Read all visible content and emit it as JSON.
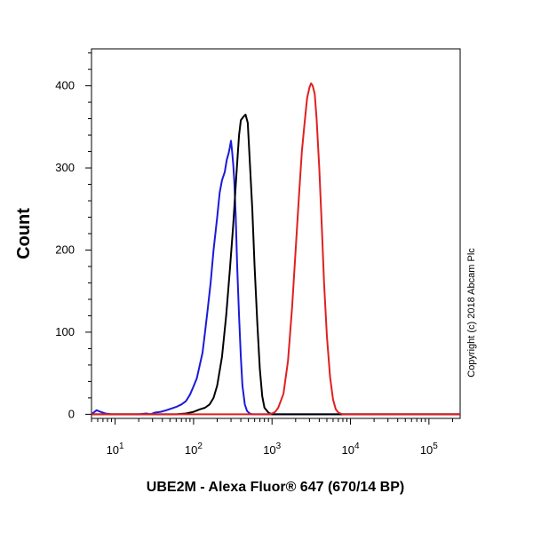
{
  "chart_data": {
    "type": "line",
    "title": "",
    "xlabel": "UBE2M - Alexa Fluor® 647 (670/14 BP)",
    "ylabel": "Count",
    "x_scale": "log",
    "xlim": [
      5,
      250000
    ],
    "ylim": [
      -5,
      445
    ],
    "x_ticks": [
      {
        "base": "10",
        "exp": "1",
        "value": 10
      },
      {
        "base": "10",
        "exp": "2",
        "value": 100
      },
      {
        "base": "10",
        "exp": "3",
        "value": 1000
      },
      {
        "base": "10",
        "exp": "4",
        "value": 10000
      },
      {
        "base": "10",
        "exp": "5",
        "value": 100000
      }
    ],
    "y_ticks": [
      "0",
      "100",
      "200",
      "300",
      "400"
    ],
    "y_tick_values": [
      0,
      100,
      200,
      300,
      400
    ],
    "grid": false,
    "legend": "none",
    "series": [
      {
        "color": "#1a1adb",
        "x": [
          5,
          5.8,
          6.5,
          7.5,
          9,
          20,
          25,
          28,
          32,
          38,
          45,
          52,
          60,
          70,
          80,
          90,
          100,
          110,
          120,
          130,
          140,
          150,
          165,
          180,
          200,
          215,
          230,
          250,
          265,
          280,
          290,
          300,
          310,
          320,
          330,
          345,
          360,
          380,
          400,
          420,
          450,
          480,
          520,
          560,
          600,
          1000,
          250000
        ],
        "y": [
          0,
          5,
          3,
          1,
          0,
          0,
          1,
          0,
          2,
          3,
          5,
          7,
          9,
          12,
          16,
          24,
          34,
          44,
          60,
          75,
          100,
          125,
          160,
          200,
          240,
          270,
          285,
          295,
          310,
          318,
          325,
          333,
          320,
          305,
          285,
          240,
          180,
          120,
          70,
          35,
          12,
          4,
          1,
          0,
          0,
          0,
          0
        ]
      },
      {
        "color": "#000000",
        "x": [
          5,
          60,
          80,
          100,
          120,
          140,
          160,
          180,
          200,
          230,
          260,
          290,
          320,
          350,
          380,
          400,
          430,
          460,
          490,
          520,
          560,
          600,
          650,
          700,
          750,
          800,
          900,
          1000,
          250000
        ],
        "y": [
          0,
          0,
          1,
          3,
          6,
          8,
          12,
          20,
          35,
          70,
          120,
          175,
          230,
          290,
          340,
          358,
          362,
          365,
          355,
          310,
          250,
          180,
          110,
          55,
          22,
          8,
          2,
          0,
          0
        ]
      },
      {
        "color": "#e02020",
        "x": [
          5,
          900,
          1000,
          1100,
          1200,
          1400,
          1600,
          1800,
          2000,
          2200,
          2400,
          2600,
          2800,
          3000,
          3150,
          3300,
          3500,
          3700,
          4000,
          4300,
          4600,
          5000,
          5500,
          6000,
          6500,
          7000,
          7500,
          8000,
          250000
        ],
        "y": [
          0,
          0,
          1,
          3,
          8,
          25,
          65,
          130,
          200,
          265,
          320,
          355,
          385,
          398,
          403,
          400,
          390,
          360,
          300,
          230,
          160,
          95,
          45,
          18,
          6,
          2,
          1,
          0,
          0
        ]
      }
    ]
  },
  "copyright": "Copyright (c) 2018 Abcam Plc"
}
